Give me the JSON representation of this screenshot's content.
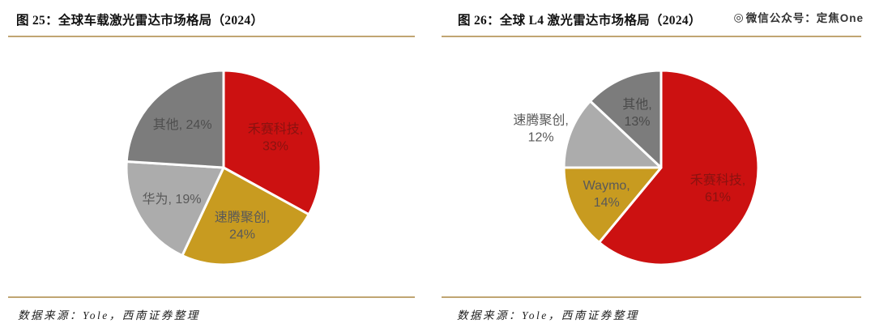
{
  "watermark": "微信公众号：定焦One",
  "accent_rule_color": "#C0A572",
  "chart_data": [
    {
      "type": "pie",
      "title": "图 25：全球车载激光雷达市场格局（2024）",
      "source_note": "数据来源：Yole，西南证券整理",
      "start_angle_deg": 0,
      "direction": "clockwise",
      "legend": "none",
      "slice_border_color": "#ffffff",
      "slices": [
        {
          "name": "禾赛科技",
          "value": 33,
          "color": "#CC1111",
          "label_lines": [
            "禾赛科技,",
            "33%"
          ],
          "label_color": "#8A1210"
        },
        {
          "name": "速腾聚创",
          "value": 24,
          "color": "#C89B20",
          "label_lines": [
            "速腾聚创,",
            "24%"
          ],
          "label_color": "#595959"
        },
        {
          "name": "华为",
          "value": 19,
          "color": "#ACACAC",
          "label_lines": [
            "华为, 19%"
          ],
          "label_color": "#595959"
        },
        {
          "name": "其他",
          "value": 24,
          "color": "#7C7C7C",
          "label_lines": [
            "其他, 24%"
          ],
          "label_color": "#4E4E4E"
        }
      ]
    },
    {
      "type": "pie",
      "title": "图 26：全球 L4 激光雷达市场格局（2024）",
      "source_note": "数据来源：Yole，西南证券整理",
      "start_angle_deg": 0,
      "direction": "clockwise",
      "legend": "none",
      "slice_border_color": "#ffffff",
      "slices": [
        {
          "name": "禾赛科技",
          "value": 61,
          "color": "#CC1111",
          "label_lines": [
            "禾赛科技,",
            "61%"
          ],
          "label_color": "#8A1210"
        },
        {
          "name": "Waymo",
          "value": 14,
          "color": "#C89B20",
          "label_lines": [
            "Waymo,",
            "14%"
          ],
          "label_color": "#595959"
        },
        {
          "name": "速腾聚创",
          "value": 12,
          "color": "#ACACAC",
          "label_lines": [
            "速腾聚创,",
            "12%"
          ],
          "label_color": "#595959",
          "label_outside": true
        },
        {
          "name": "其他",
          "value": 13,
          "color": "#7C7C7C",
          "label_lines": [
            "其他,",
            "13%"
          ],
          "label_color": "#4A4A4A"
        }
      ]
    }
  ]
}
